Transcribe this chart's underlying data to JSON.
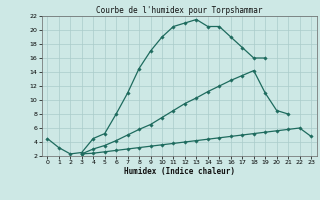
{
  "title": "Courbe de l'humidex pour Torpshammar",
  "xlabel": "Humidex (Indice chaleur)",
  "background_color": "#cde8e5",
  "grid_color": "#aaccca",
  "line_color": "#1e6b5e",
  "xlim": [
    -0.5,
    23.5
  ],
  "ylim": [
    2,
    22
  ],
  "xticks": [
    0,
    1,
    2,
    3,
    4,
    5,
    6,
    7,
    8,
    9,
    10,
    11,
    12,
    13,
    14,
    15,
    16,
    17,
    18,
    19,
    20,
    21,
    22,
    23
  ],
  "yticks": [
    2,
    4,
    6,
    8,
    10,
    12,
    14,
    16,
    18,
    20,
    22
  ],
  "lines": [
    {
      "x": [
        0,
        1,
        2,
        3,
        4,
        5,
        6,
        7,
        8,
        9,
        10,
        11,
        12,
        13,
        14,
        15,
        16,
        17,
        18,
        19
      ],
      "y": [
        4.5,
        3.2,
        2.3,
        2.5,
        4.5,
        5.2,
        8.0,
        11.0,
        14.5,
        17.0,
        19.0,
        20.5,
        21.0,
        21.5,
        20.5,
        20.5,
        19.0,
        17.5,
        16.0,
        16.0
      ]
    },
    {
      "x": [
        3,
        4,
        5,
        6,
        7,
        8,
        9,
        10,
        11,
        12,
        13,
        14,
        15,
        16,
        17,
        18,
        19,
        20,
        21
      ],
      "y": [
        2.3,
        3.0,
        3.5,
        4.2,
        5.0,
        5.8,
        6.5,
        7.5,
        8.5,
        9.5,
        10.3,
        11.2,
        12.0,
        12.8,
        13.5,
        14.2,
        11.0,
        8.5,
        8.0
      ]
    },
    {
      "x": [
        3,
        4,
        5,
        6,
        7,
        8,
        9,
        10,
        11,
        12,
        13,
        14,
        15,
        16,
        17,
        18,
        19,
        20,
        21,
        22,
        23
      ],
      "y": [
        2.3,
        2.4,
        2.6,
        2.8,
        3.0,
        3.2,
        3.4,
        3.6,
        3.8,
        4.0,
        4.2,
        4.4,
        4.6,
        4.8,
        5.0,
        5.2,
        5.4,
        5.6,
        5.8,
        6.0,
        4.8
      ]
    }
  ]
}
